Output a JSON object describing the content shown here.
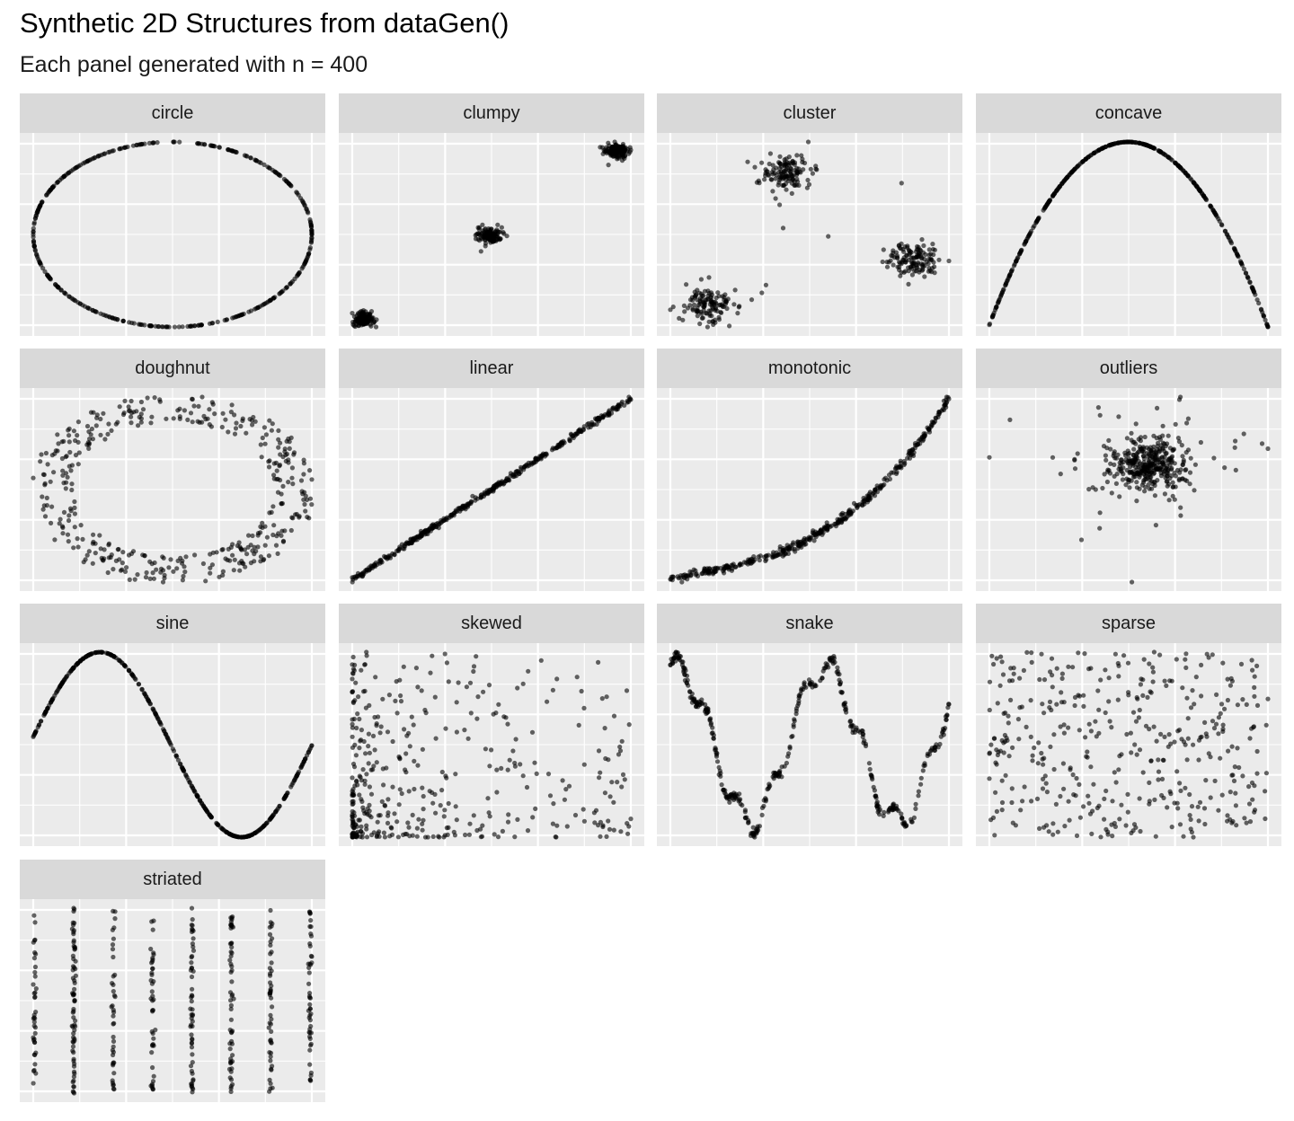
{
  "title": "Synthetic 2D Structures from dataGen()",
  "subtitle": "Each panel generated with n = 400",
  "colors": {
    "panel_bg": "#ebebeb",
    "strip_bg": "#d9d9d9",
    "grid": "#ffffff",
    "point": "#000000"
  },
  "chart_data": {
    "type": "scatter",
    "facet_layout": "4 columns, wrapped",
    "n_per_panel": 400,
    "point_alpha": 0.6,
    "grid": true,
    "axis_labels_shown": false,
    "panels": [
      {
        "label": "circle",
        "shape": "thin elliptical ring"
      },
      {
        "label": "clumpy",
        "shape": "three tight clumps along a diagonal"
      },
      {
        "label": "cluster",
        "shape": "three loose clusters with a few strays"
      },
      {
        "label": "concave",
        "shape": "inverted parabola arc"
      },
      {
        "label": "doughnut",
        "shape": "noisy ring with empty centre"
      },
      {
        "label": "linear",
        "shape": "tight increasing straight line"
      },
      {
        "label": "monotonic",
        "shape": "increasing convex curve"
      },
      {
        "label": "outliers",
        "shape": "central blob with scattered outliers"
      },
      {
        "label": "sine",
        "shape": "one full sine wave"
      },
      {
        "label": "skewed",
        "shape": "points dense at lower-left, thinning to upper-right"
      },
      {
        "label": "snake",
        "shape": "noisy wiggly double-hump curve"
      },
      {
        "label": "sparse",
        "shape": "uniform sparse scatter"
      },
      {
        "label": "striated",
        "shape": "eight vertical stripes"
      }
    ]
  }
}
